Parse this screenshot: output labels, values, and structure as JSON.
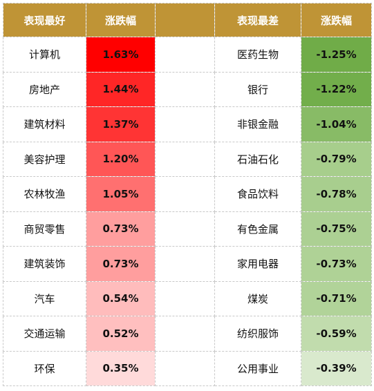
{
  "headers": {
    "best_name": "表现最好",
    "best_change": "涨跌幅",
    "worst_name": "表现最差",
    "worst_change": "涨跌幅"
  },
  "colors": {
    "header_bg": "#bf9436",
    "header_text": "#ffffff"
  },
  "best": [
    {
      "name": "计算机",
      "change": "1.63%",
      "color": "#ff0000"
    },
    {
      "name": "房地产",
      "change": "1.44%",
      "color": "#ff2626"
    },
    {
      "name": "建筑材料",
      "change": "1.37%",
      "color": "#ff3434"
    },
    {
      "name": "美容护理",
      "change": "1.20%",
      "color": "#ff5656"
    },
    {
      "name": "农林牧渔",
      "change": "1.05%",
      "color": "#ff7070"
    },
    {
      "name": "商贸零售",
      "change": "0.73%",
      "color": "#ff9e9e"
    },
    {
      "name": "建筑装饰",
      "change": "0.73%",
      "color": "#ff9e9e"
    },
    {
      "name": "汽车",
      "change": "0.54%",
      "color": "#ffbcbc"
    },
    {
      "name": "交通运输",
      "change": "0.52%",
      "color": "#ffbfbf"
    },
    {
      "name": "环保",
      "change": "0.35%",
      "color": "#ffdada"
    }
  ],
  "worst": [
    {
      "name": "医药生物",
      "change": "-1.25%",
      "color": "#70ac48"
    },
    {
      "name": "银行",
      "change": "-1.22%",
      "color": "#72ae4b"
    },
    {
      "name": "非银金融",
      "change": "-1.04%",
      "color": "#88bb66"
    },
    {
      "name": "石油石化",
      "change": "-0.79%",
      "color": "#a7ce8c"
    },
    {
      "name": "食品饮料",
      "change": "-0.78%",
      "color": "#a8ce8e"
    },
    {
      "name": "有色金属",
      "change": "-0.75%",
      "color": "#acd093"
    },
    {
      "name": "家用电器",
      "change": "-0.73%",
      "color": "#afd296"
    },
    {
      "name": "煤炭",
      "change": "-0.71%",
      "color": "#b1d399"
    },
    {
      "name": "纺织服饰",
      "change": "-0.59%",
      "color": "#c1dcad"
    },
    {
      "name": "公用事业",
      "change": "-0.39%",
      "color": "#d9e9cd"
    }
  ]
}
